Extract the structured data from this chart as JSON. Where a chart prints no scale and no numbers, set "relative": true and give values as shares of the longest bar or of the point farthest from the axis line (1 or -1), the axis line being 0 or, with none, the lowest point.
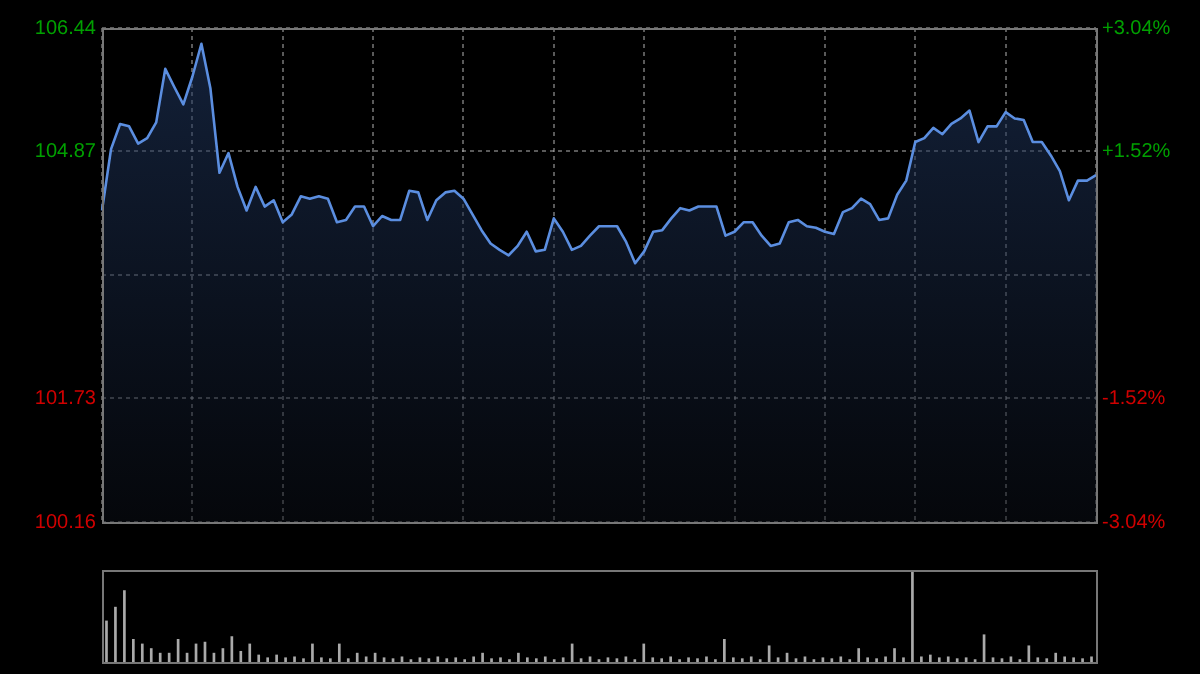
{
  "chart_data": [
    {
      "type": "area",
      "categories": [
        null,
        null,
        null,
        null,
        null,
        null,
        null,
        null,
        null,
        null,
        null,
        null,
        null,
        null,
        null,
        null,
        null,
        null,
        null,
        null,
        null,
        null,
        null,
        null,
        null,
        null,
        null,
        null,
        null,
        null,
        null,
        null,
        null,
        null,
        null,
        null,
        null,
        null,
        null,
        null,
        null,
        null,
        null,
        null,
        null,
        null,
        null,
        null,
        null,
        null,
        null,
        null,
        null,
        null,
        null,
        null,
        null,
        null,
        null,
        null,
        null,
        null,
        null,
        null,
        null,
        null,
        null,
        null,
        null,
        null,
        null,
        null,
        null,
        null,
        null,
        null,
        null,
        null,
        null,
        null,
        null,
        null,
        null,
        null,
        null,
        null,
        null,
        null,
        null,
        null,
        null,
        null,
        null,
        null,
        null,
        null,
        null,
        null,
        null,
        null,
        null,
        null,
        null,
        null,
        null,
        null,
        null,
        null,
        null,
        null,
        null
      ],
      "values": [
        104.12,
        104.9,
        105.22,
        105.19,
        104.97,
        105.04,
        105.24,
        105.92,
        105.69,
        105.47,
        105.82,
        106.24,
        105.67,
        104.6,
        104.85,
        104.42,
        104.12,
        104.42,
        104.17,
        104.25,
        103.97,
        104.07,
        104.3,
        104.27,
        104.3,
        104.27,
        103.97,
        104.0,
        104.17,
        104.17,
        103.92,
        104.05,
        104.0,
        104.0,
        104.37,
        104.35,
        104.0,
        104.25,
        104.35,
        104.37,
        104.27,
        104.07,
        103.87,
        103.7,
        103.62,
        103.55,
        103.67,
        103.85,
        103.6,
        103.62,
        104.02,
        103.85,
        103.62,
        103.67,
        103.8,
        103.92,
        103.92,
        103.92,
        103.72,
        103.45,
        103.6,
        103.85,
        103.87,
        104.02,
        104.15,
        104.12,
        104.17,
        104.17,
        104.17,
        103.8,
        103.85,
        103.97,
        103.97,
        103.8,
        103.67,
        103.7,
        103.97,
        104.0,
        103.92,
        103.9,
        103.85,
        103.82,
        104.1,
        104.15,
        104.27,
        104.2,
        104.0,
        104.02,
        104.32,
        104.5,
        104.99,
        105.04,
        105.17,
        105.09,
        105.22,
        105.29,
        105.39,
        104.99,
        105.19,
        105.19,
        105.37,
        105.29,
        105.27,
        104.99,
        104.99,
        104.82,
        104.62,
        104.25,
        104.5,
        104.5,
        104.57
      ],
      "color": "#5b8ee0",
      "ylim": [
        100.16,
        106.44
      ],
      "yticks": [
        100.16,
        101.73,
        {
          "value": 103.3,
          "label": null
        },
        104.87,
        106.44
      ],
      "y2lim": [
        -3.04,
        3.04
      ],
      "y2ticks": [
        {
          "value": -3.04,
          "label": "-3.04%"
        },
        {
          "value": -1.52,
          "label": "-1.52%"
        },
        {
          "value": 0,
          "label": null
        },
        {
          "value": 1.52,
          "label": "+1.52%"
        },
        {
          "value": 3.04,
          "label": "+3.04%"
        }
      ],
      "grid": true,
      "tick_labels": "y"
    },
    {
      "type": "bar",
      "categories": [
        null,
        null,
        null,
        null,
        null,
        null,
        null,
        null,
        null,
        null,
        null,
        null,
        null,
        null,
        null,
        null,
        null,
        null,
        null,
        null,
        null,
        null,
        null,
        null,
        null,
        null,
        null,
        null,
        null,
        null,
        null,
        null,
        null,
        null,
        null,
        null,
        null,
        null,
        null,
        null,
        null,
        null,
        null,
        null,
        null,
        null,
        null,
        null,
        null,
        null,
        null,
        null,
        null,
        null,
        null,
        null,
        null,
        null,
        null,
        null,
        null,
        null,
        null,
        null,
        null,
        null,
        null,
        null,
        null,
        null,
        null,
        null,
        null,
        null,
        null,
        null,
        null,
        null,
        null,
        null,
        null,
        null,
        null,
        null,
        null,
        null,
        null,
        null,
        null,
        null,
        null,
        null,
        null,
        null,
        null,
        null,
        null,
        null,
        null,
        null,
        null,
        null,
        null,
        null,
        null,
        null,
        null,
        null,
        null,
        null,
        null
      ],
      "values": [
        0.45,
        0.6,
        0.78,
        0.25,
        0.2,
        0.15,
        0.1,
        0.1,
        0.25,
        0.1,
        0.2,
        0.22,
        0.1,
        0.15,
        0.28,
        0.12,
        0.2,
        0.08,
        0.05,
        0.08,
        0.05,
        0.06,
        0.04,
        0.2,
        0.05,
        0.04,
        0.2,
        0.04,
        0.1,
        0.06,
        0.1,
        0.05,
        0.04,
        0.06,
        0.03,
        0.05,
        0.04,
        0.06,
        0.04,
        0.05,
        0.03,
        0.06,
        0.1,
        0.04,
        0.05,
        0.03,
        0.1,
        0.05,
        0.04,
        0.06,
        0.03,
        0.05,
        0.2,
        0.04,
        0.06,
        0.03,
        0.05,
        0.04,
        0.06,
        0.03,
        0.2,
        0.05,
        0.04,
        0.06,
        0.03,
        0.05,
        0.04,
        0.06,
        0.03,
        0.25,
        0.05,
        0.04,
        0.06,
        0.03,
        0.18,
        0.05,
        0.1,
        0.04,
        0.06,
        0.03,
        0.05,
        0.04,
        0.06,
        0.03,
        0.15,
        0.05,
        0.04,
        0.06,
        0.15,
        0.05,
        1,
        0.06,
        0.08,
        0.05,
        0.06,
        0.04,
        0.05,
        0.03,
        0.3,
        0.05,
        0.04,
        0.06,
        0.03,
        0.18,
        0.05,
        0.04,
        0.1,
        0.06,
        0.05,
        0.04,
        0.06
      ],
      "color": "#aaaaaa",
      "relative": true,
      "tick_labels": false
    }
  ]
}
